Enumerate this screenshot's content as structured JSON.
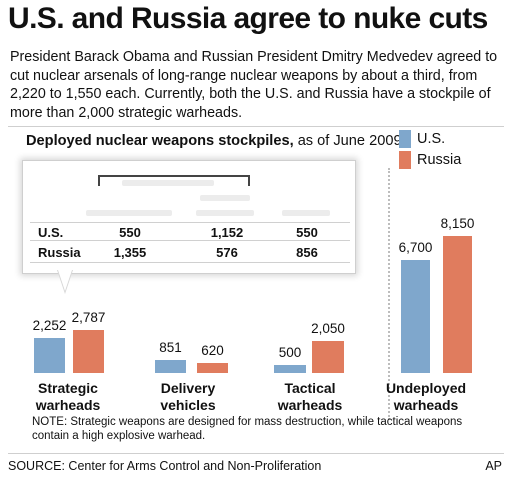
{
  "headline": "U.S. and Russia agree to nuke cuts",
  "intro": "President Barack Obama and Russian President Dmitry Medvedev agreed to cut nuclear arsenals of long-range nuclear weapons by about a third, from 2,220 to 1,550 each. Currently, both the U.S. and Russia have a stockpile of more than 2,000 strategic warheads.",
  "chart_title_bold": "Deployed nuclear weapons stockpiles,",
  "chart_title_rest": " as of June 2009",
  "legend": [
    {
      "label": "U.S.",
      "color": "#7fa7cc"
    },
    {
      "label": "Russia",
      "color": "#e07c5e"
    }
  ],
  "table": {
    "rows": [
      {
        "label": "U.S.",
        "values": [
          "550",
          "1,152",
          "550"
        ]
      },
      {
        "label": "Russia",
        "values": [
          "1,355",
          "576",
          "856"
        ]
      }
    ]
  },
  "chart_data": {
    "type": "bar",
    "categories": [
      "Strategic warheads",
      "Delivery vehicles",
      "Tactical warheads",
      "Undeployed warheads"
    ],
    "series": [
      {
        "name": "U.S.",
        "values": [
          2252,
          851,
          500,
          6700
        ]
      },
      {
        "name": "Russia",
        "values": [
          2787,
          620,
          2050,
          8150
        ]
      }
    ],
    "value_labels": {
      "U.S.": [
        "2,252",
        "851",
        "500",
        "6,700"
      ],
      "Russia": [
        "2,787",
        "620",
        "2,050",
        "8,150"
      ]
    },
    "category_lines": [
      [
        "Strategic",
        "warheads"
      ],
      [
        "Delivery",
        "vehicles"
      ],
      [
        "Tactical",
        "warheads"
      ],
      [
        "Undeployed",
        "warheads"
      ]
    ]
  },
  "note": "NOTE: Strategic weapons are designed for mass destruction, while tactical weapons contain a high explosive warhead.",
  "source": "SOURCE: Center for Arms Control and Non-Proliferation",
  "credit": "AP"
}
